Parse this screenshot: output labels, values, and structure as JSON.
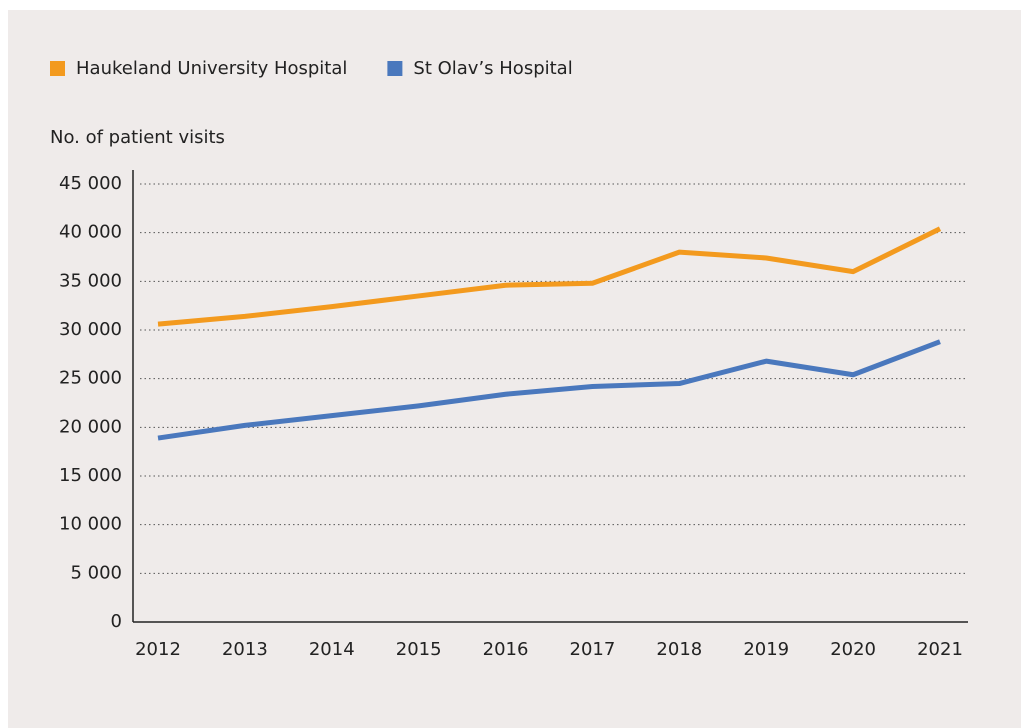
{
  "chart_data": {
    "type": "line",
    "y_axis_label": "No. of patient visits",
    "categories": [
      "2012",
      "2013",
      "2014",
      "2015",
      "2016",
      "2017",
      "2018",
      "2019",
      "2020",
      "2021"
    ],
    "series": [
      {
        "name": "Haukeland University Hospital",
        "color": "#f39a1e",
        "values": [
          30600,
          31400,
          32400,
          33500,
          34600,
          34800,
          38000,
          37400,
          36000,
          40400
        ]
      },
      {
        "name": "St Olav’s Hospital",
        "color": "#4a78bd",
        "values": [
          18900,
          20200,
          21200,
          22200,
          23400,
          24200,
          24500,
          26800,
          25400,
          28800
        ]
      }
    ],
    "ylim": [
      0,
      45000
    ],
    "yticks": [
      0,
      {
        "value": 5000,
        "label": "5 000"
      },
      {
        "value": 10000,
        "label": "10 000"
      },
      {
        "value": 15000,
        "label": "15 000"
      },
      {
        "value": 20000,
        "label": "20 000"
      },
      {
        "value": 25000,
        "label": "25 000"
      },
      {
        "value": 30000,
        "label": "30 000"
      },
      {
        "value": 35000,
        "label": "35 000"
      },
      {
        "value": 40000,
        "label": "40 000"
      },
      {
        "value": 45000,
        "label": "45 000"
      }
    ],
    "grid": true,
    "legend": "top-left"
  }
}
